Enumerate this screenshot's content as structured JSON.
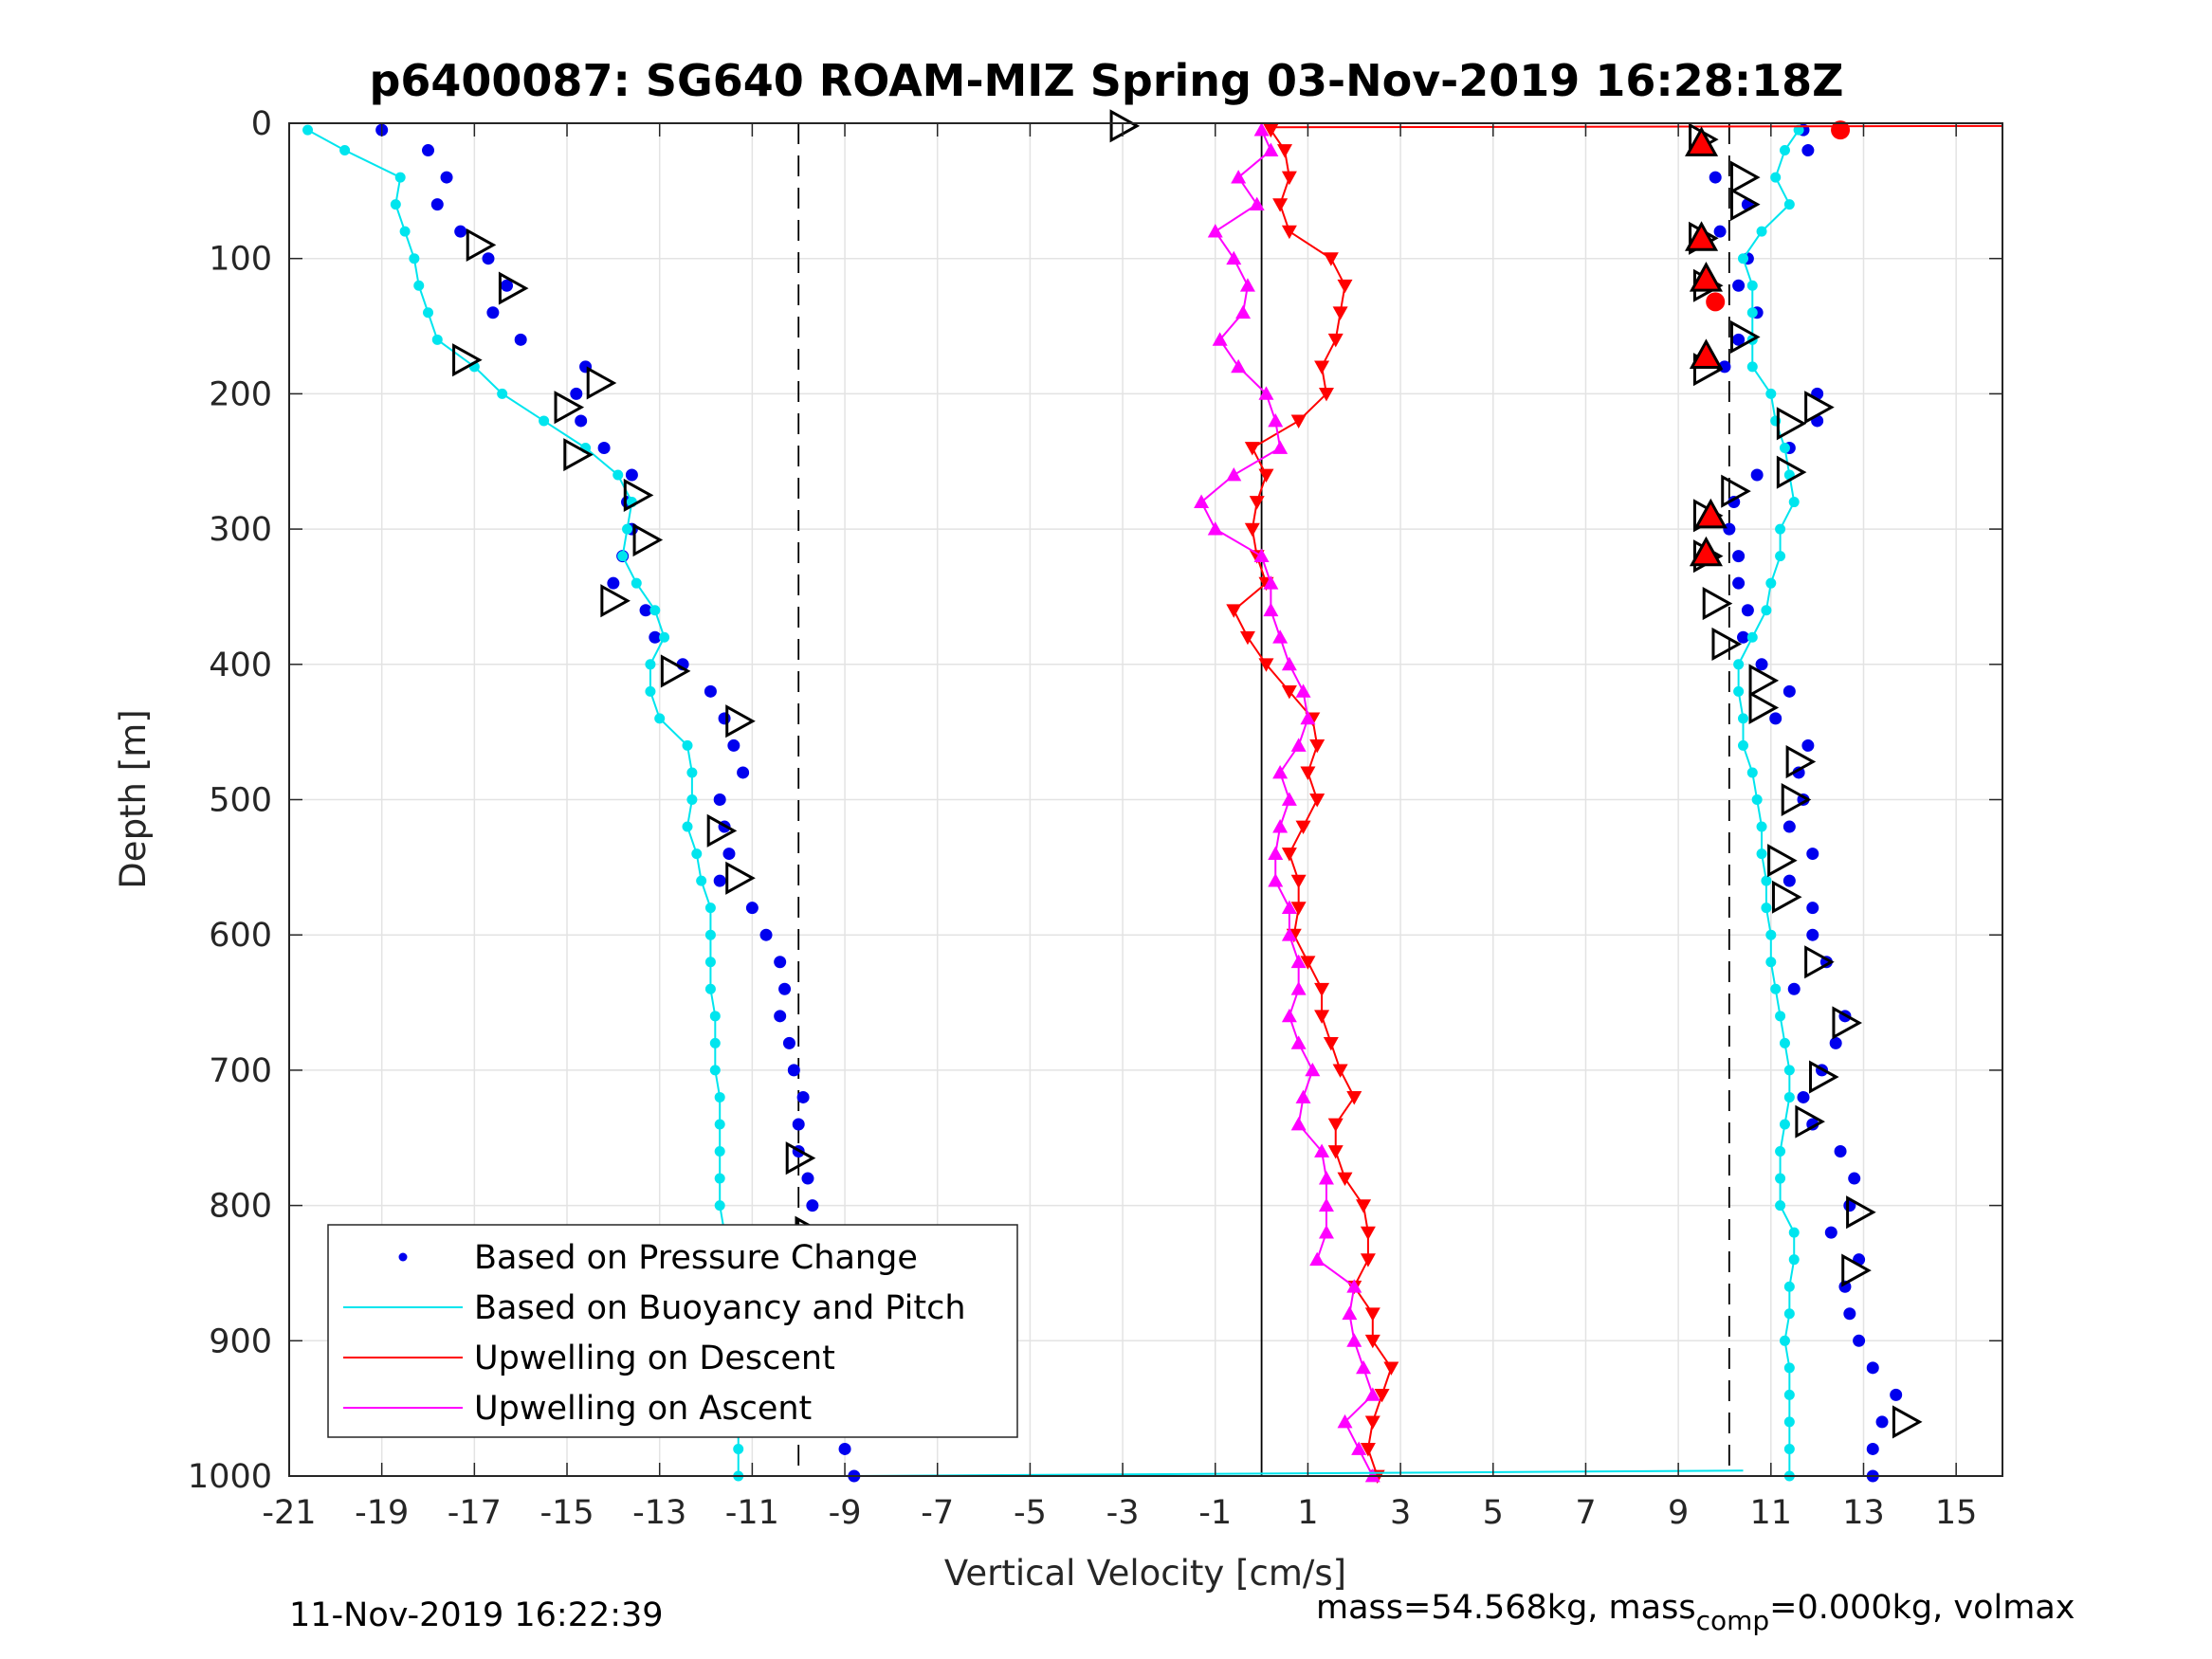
{
  "chart_data": {
    "type": "scatter",
    "title": "p6400087: SG640 ROAM-MIZ Spring 03-Nov-2019 16:28:18Z",
    "xlabel": "Vertical Velocity [cm/s]",
    "ylabel": "Depth [m]",
    "xlim": [
      -21,
      16
    ],
    "ylim": [
      1000,
      0
    ],
    "y_reversed": true,
    "grid": true,
    "legend_position": "lower-left",
    "xticks": [
      "-21",
      "-19",
      "-17",
      "-15",
      "-13",
      "-11",
      "-9",
      "-7",
      "-5",
      "-3",
      "-1",
      "1",
      "3",
      "5",
      "7",
      "9",
      "11",
      "13",
      "15"
    ],
    "yticks": [
      "0",
      "100",
      "200",
      "300",
      "400",
      "500",
      "600",
      "700",
      "800",
      "900",
      "1000"
    ],
    "reference_lines": [
      {
        "x": -10,
        "style": "dashed",
        "color": "#000000"
      },
      {
        "x": 10.1,
        "style": "dashed",
        "color": "#000000"
      },
      {
        "x": 0,
        "style": "solid",
        "color": "#000000"
      }
    ],
    "series": [
      {
        "name": "Based on Pressure Change",
        "color": "#0000ee",
        "marker": "dot",
        "segments": [
          {
            "depth": [
              5,
              20,
              40,
              60,
              80,
              100,
              120,
              140,
              160,
              180,
              200,
              220,
              240,
              260,
              280,
              300,
              320,
              340,
              360,
              380,
              400,
              420,
              440,
              460,
              480,
              500,
              520,
              540,
              560,
              580,
              600,
              620,
              640,
              660,
              680,
              700,
              720,
              740,
              760,
              780,
              800,
              820,
              840,
              860,
              880,
              900,
              920,
              940,
              960,
              980,
              1000
            ],
            "velocity": [
              -19.0,
              -18.0,
              -17.6,
              -17.8,
              -17.3,
              -16.7,
              -16.3,
              -16.6,
              -16.0,
              -14.6,
              -14.8,
              -14.7,
              -14.2,
              -13.6,
              -13.7,
              -13.6,
              -13.8,
              -14.0,
              -13.3,
              -13.1,
              -12.5,
              -11.9,
              -11.6,
              -11.4,
              -11.2,
              -11.7,
              -11.6,
              -11.5,
              -11.7,
              -11.0,
              -10.7,
              -10.4,
              -10.3,
              -10.4,
              -10.2,
              -10.1,
              -9.9,
              -10.0,
              -10.0,
              -9.8,
              -9.7,
              -9.7,
              -9.5,
              -9.3,
              -9.0,
              -8.9,
              -8.8,
              -8.9,
              -9.1,
              -9.0,
              -8.8
            ]
          },
          {
            "depth": [
              5,
              20,
              40,
              60,
              80,
              100,
              120,
              140,
              160,
              180,
              200,
              220,
              240,
              260,
              280,
              300,
              320,
              340,
              360,
              380,
              400,
              420,
              440,
              460,
              480,
              500,
              520,
              540,
              560,
              580,
              600,
              620,
              640,
              660,
              680,
              700,
              720,
              740,
              760,
              780,
              800,
              820,
              840,
              860,
              880,
              900,
              920,
              940,
              960,
              980,
              1000
            ],
            "velocity": [
              11.7,
              11.8,
              9.8,
              10.5,
              9.9,
              10.5,
              10.3,
              10.7,
              10.3,
              10.0,
              12.0,
              12.0,
              11.4,
              10.7,
              10.2,
              10.1,
              10.3,
              10.3,
              10.5,
              10.4,
              10.8,
              11.4,
              11.1,
              11.8,
              11.6,
              11.7,
              11.4,
              11.9,
              11.4,
              11.9,
              11.9,
              12.2,
              11.5,
              12.6,
              12.4,
              12.1,
              11.7,
              11.9,
              12.5,
              12.8,
              12.7,
              12.3,
              12.9,
              12.6,
              12.7,
              12.9,
              13.2,
              13.7,
              13.4,
              13.2,
              13.2
            ]
          }
        ]
      },
      {
        "name": "Based on Buoyancy and Pitch",
        "color": "#00e5ee",
        "marker": "circle-line",
        "segments": [
          {
            "depth": [
              5,
              20,
              40,
              60,
              80,
              100,
              120,
              140,
              160,
              180,
              200,
              220,
              240,
              260,
              280,
              300,
              320,
              340,
              360,
              380,
              400,
              420,
              440,
              460,
              480,
              500,
              520,
              540,
              560,
              580,
              600,
              620,
              640,
              660,
              680,
              700,
              720,
              740,
              760,
              780,
              800,
              820,
              840,
              860,
              880,
              900,
              920,
              940,
              960,
              980,
              1000
            ],
            "velocity": [
              -20.6,
              -19.8,
              -18.6,
              -18.7,
              -18.5,
              -18.3,
              -18.2,
              -18.0,
              -17.8,
              -17.0,
              -16.4,
              -15.5,
              -14.6,
              -13.9,
              -13.6,
              -13.7,
              -13.8,
              -13.5,
              -13.1,
              -12.9,
              -13.2,
              -13.2,
              -13.0,
              -12.4,
              -12.3,
              -12.3,
              -12.4,
              -12.2,
              -12.1,
              -11.9,
              -11.9,
              -11.9,
              -11.9,
              -11.8,
              -11.8,
              -11.8,
              -11.7,
              -11.7,
              -11.7,
              -11.7,
              -11.7,
              -11.6,
              -11.4,
              -11.4,
              -11.4,
              -11.4,
              -11.4,
              -11.3,
              -11.3,
              -11.3,
              -11.3
            ]
          },
          {
            "depth": [
              5,
              20,
              40,
              60,
              80,
              100,
              120,
              140,
              160,
              180,
              200,
              220,
              240,
              260,
              280,
              300,
              320,
              340,
              360,
              380,
              400,
              420,
              440,
              460,
              480,
              500,
              520,
              540,
              560,
              580,
              600,
              620,
              640,
              660,
              680,
              700,
              720,
              740,
              760,
              780,
              800,
              820,
              840,
              860,
              880,
              900,
              920,
              940,
              960,
              980,
              1000
            ],
            "velocity": [
              11.6,
              11.3,
              11.1,
              11.4,
              10.8,
              10.4,
              10.6,
              10.6,
              10.6,
              10.6,
              11.0,
              11.1,
              11.3,
              11.4,
              11.5,
              11.2,
              11.2,
              11.0,
              10.9,
              10.6,
              10.3,
              10.3,
              10.4,
              10.4,
              10.6,
              10.7,
              10.8,
              10.8,
              10.9,
              10.9,
              11.0,
              11.0,
              11.1,
              11.2,
              11.3,
              11.4,
              11.4,
              11.3,
              11.2,
              11.2,
              11.2,
              11.5,
              11.5,
              11.4,
              11.4,
              11.3,
              11.4,
              11.4,
              11.4,
              11.4,
              11.4
            ]
          }
        ]
      },
      {
        "name": "Upwelling on Descent",
        "color": "#ff0000",
        "marker": "triangle-down",
        "segments": [
          {
            "depth": [
              5,
              20,
              40,
              60,
              80,
              100,
              120,
              140,
              160,
              180,
              200,
              220,
              240,
              260,
              280,
              300,
              320,
              340,
              360,
              380,
              400,
              420,
              440,
              460,
              480,
              500,
              520,
              540,
              560,
              580,
              600,
              620,
              640,
              660,
              680,
              700,
              720,
              740,
              760,
              780,
              800,
              820,
              840,
              860,
              880,
              900,
              920,
              940,
              960,
              980,
              1000
            ],
            "velocity": [
              0.2,
              0.5,
              0.6,
              0.4,
              0.6,
              1.5,
              1.8,
              1.7,
              1.6,
              1.3,
              1.4,
              0.8,
              -0.2,
              0.1,
              -0.1,
              -0.2,
              -0.1,
              0.1,
              -0.6,
              -0.3,
              0.1,
              0.6,
              1.1,
              1.2,
              1.0,
              1.2,
              0.9,
              0.6,
              0.8,
              0.8,
              0.7,
              1.0,
              1.3,
              1.3,
              1.5,
              1.7,
              2.0,
              1.6,
              1.6,
              1.8,
              2.2,
              2.3,
              2.3,
              2.0,
              2.4,
              2.4,
              2.8,
              2.6,
              2.4,
              2.3,
              2.5
            ]
          }
        ]
      },
      {
        "name": "Upwelling on Ascent",
        "color": "#ff00ff",
        "marker": "triangle-up",
        "segments": [
          {
            "depth": [
              5,
              20,
              40,
              60,
              80,
              100,
              120,
              140,
              160,
              180,
              200,
              220,
              240,
              260,
              280,
              300,
              320,
              340,
              360,
              380,
              400,
              420,
              440,
              460,
              480,
              500,
              520,
              540,
              560,
              580,
              600,
              620,
              640,
              660,
              680,
              700,
              720,
              740,
              760,
              780,
              800,
              820,
              840,
              860,
              880,
              900,
              920,
              940,
              960,
              980,
              1000
            ],
            "velocity": [
              0.0,
              0.2,
              -0.5,
              -0.1,
              -1.0,
              -0.6,
              -0.3,
              -0.4,
              -0.9,
              -0.5,
              0.1,
              0.3,
              0.4,
              -0.6,
              -1.3,
              -1.0,
              0.0,
              0.2,
              0.2,
              0.4,
              0.6,
              0.9,
              1.0,
              0.8,
              0.4,
              0.6,
              0.4,
              0.3,
              0.3,
              0.6,
              0.6,
              0.8,
              0.8,
              0.6,
              0.8,
              1.1,
              0.9,
              0.8,
              1.3,
              1.4,
              1.4,
              1.4,
              1.2,
              2.0,
              1.9,
              2.0,
              2.2,
              2.4,
              1.8,
              2.1,
              2.4
            ]
          }
        ]
      },
      {
        "name": "",
        "color": "#000000",
        "marker": "triangle-right-open",
        "points": [
          {
            "velocity": -3.0,
            "depth": 2
          },
          {
            "velocity": -16.9,
            "depth": 90
          },
          {
            "velocity": -16.2,
            "depth": 122
          },
          {
            "velocity": -17.2,
            "depth": 175
          },
          {
            "velocity": -14.3,
            "depth": 192
          },
          {
            "velocity": -15.0,
            "depth": 210
          },
          {
            "velocity": -14.8,
            "depth": 245
          },
          {
            "velocity": -13.5,
            "depth": 275
          },
          {
            "velocity": -13.3,
            "depth": 308
          },
          {
            "velocity": -14.0,
            "depth": 353
          },
          {
            "velocity": -12.7,
            "depth": 405
          },
          {
            "velocity": -11.3,
            "depth": 442
          },
          {
            "velocity": -11.7,
            "depth": 523
          },
          {
            "velocity": -11.3,
            "depth": 558
          },
          {
            "velocity": -10.0,
            "depth": 765
          },
          {
            "velocity": -9.8,
            "depth": 820
          },
          {
            "velocity": 9.5,
            "depth": 12
          },
          {
            "velocity": 10.4,
            "depth": 40
          },
          {
            "velocity": 10.4,
            "depth": 60
          },
          {
            "velocity": 9.5,
            "depth": 85
          },
          {
            "velocity": 9.6,
            "depth": 120
          },
          {
            "velocity": 10.4,
            "depth": 158
          },
          {
            "velocity": 9.6,
            "depth": 182
          },
          {
            "velocity": 11.4,
            "depth": 222
          },
          {
            "velocity": 12.0,
            "depth": 210
          },
          {
            "velocity": 11.4,
            "depth": 258
          },
          {
            "velocity": 10.2,
            "depth": 272
          },
          {
            "velocity": 9.6,
            "depth": 290
          },
          {
            "velocity": 9.6,
            "depth": 320
          },
          {
            "velocity": 9.8,
            "depth": 355
          },
          {
            "velocity": 10.0,
            "depth": 385
          },
          {
            "velocity": 10.8,
            "depth": 412
          },
          {
            "velocity": 10.8,
            "depth": 432
          },
          {
            "velocity": 11.6,
            "depth": 472
          },
          {
            "velocity": 11.5,
            "depth": 500
          },
          {
            "velocity": 11.2,
            "depth": 545
          },
          {
            "velocity": 11.3,
            "depth": 572
          },
          {
            "velocity": 12.0,
            "depth": 620
          },
          {
            "velocity": 12.6,
            "depth": 665
          },
          {
            "velocity": 12.1,
            "depth": 705
          },
          {
            "velocity": 11.8,
            "depth": 738
          },
          {
            "velocity": 12.9,
            "depth": 805
          },
          {
            "velocity": 12.8,
            "depth": 848
          },
          {
            "velocity": 13.9,
            "depth": 960
          }
        ]
      },
      {
        "name": "",
        "color": "#ff0000",
        "marker": "triangle-up-filled-black-edge",
        "points": [
          {
            "velocity": 9.5,
            "depth": 15
          },
          {
            "velocity": 9.5,
            "depth": 85
          },
          {
            "velocity": 9.6,
            "depth": 115
          },
          {
            "velocity": 9.6,
            "depth": 172
          },
          {
            "velocity": 9.7,
            "depth": 290
          },
          {
            "velocity": 9.6,
            "depth": 318
          }
        ]
      },
      {
        "name": "",
        "color": "#ff0000",
        "marker": "dot-large",
        "points": [
          {
            "velocity": 12.5,
            "depth": 5
          },
          {
            "velocity": 9.8,
            "depth": 132
          }
        ]
      }
    ],
    "extra_lines": [
      {
        "color": "#00e5ee",
        "points": [
          {
            "velocity": -8.8,
            "depth": 1000
          },
          {
            "velocity": 10.4,
            "depth": 996
          }
        ]
      },
      {
        "color": "#ff0000",
        "points": [
          {
            "velocity": 0.2,
            "depth": 3
          },
          {
            "velocity": 16,
            "depth": 2
          }
        ]
      }
    ]
  },
  "footer": {
    "timestamp": "11-Nov-2019 16:22:39",
    "mass_text_a": "mass=54.568kg, mass",
    "mass_sub": "comp",
    "mass_text_b": "=0.000kg, volmax"
  }
}
